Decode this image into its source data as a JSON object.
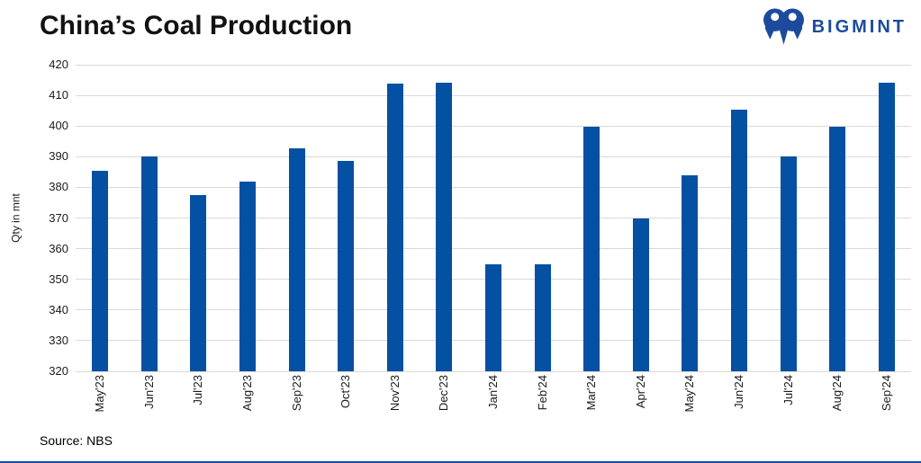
{
  "header": {
    "title": "China’s Coal Production",
    "logo_text": "BIGMINT"
  },
  "footer": {
    "source": "Source: NBS"
  },
  "colors": {
    "bar": "#0450a2",
    "accent_blue": "#1c4b9e",
    "gridline": "#d9d9d9",
    "text_dark": "#1a1a1a",
    "title_text": "#121212"
  },
  "chart_data": {
    "type": "bar",
    "title": "China’s Coal Production",
    "categories": [
      "May'23",
      "Jun'23",
      "Jul'23",
      "Aug'23",
      "Sep'23",
      "Oct'23",
      "Nov'23",
      "Dec'23",
      "Jan'24",
      "Feb'24",
      "Mar'24",
      "Apr'24",
      "May'24",
      "Jun'24",
      "Jul'24",
      "Aug'24",
      "Sep'24"
    ],
    "values": [
      385.5,
      390,
      377.5,
      382,
      392.8,
      388.6,
      413.9,
      414.1,
      355,
      355,
      399.8,
      370,
      383.8,
      405.4,
      390,
      399.8,
      414.1
    ],
    "xlabel": "",
    "ylabel": "Qty in mnt",
    "ylim": [
      320,
      420
    ],
    "ytick_step": 10,
    "yticks": [
      320,
      330,
      340,
      350,
      360,
      370,
      380,
      390,
      400,
      410,
      420
    ],
    "grid": "horizontal",
    "legend": "none",
    "source": "Source: NBS"
  }
}
